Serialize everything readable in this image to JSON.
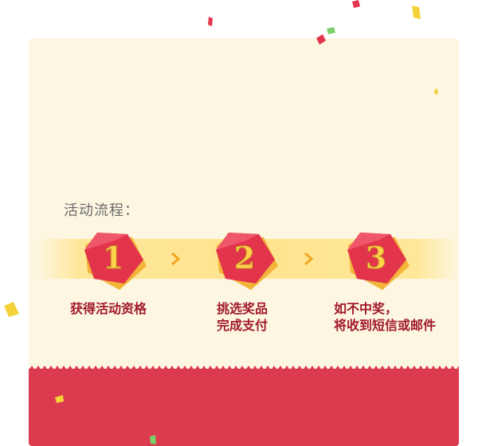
{
  "flow": {
    "label": "活动流程：",
    "steps": [
      {
        "number": "1",
        "caption_lines": [
          "获得活动资格"
        ]
      },
      {
        "number": "2",
        "caption_lines": [
          "挑选奖品",
          "完成支付"
        ]
      },
      {
        "number": "3",
        "caption_lines": [
          "如不中奖，",
          "将收到短信或邮件"
        ]
      }
    ]
  },
  "colors": {
    "card_background": "#fdf6e1",
    "band": "#ffe48e",
    "badge_red": "#e2344a",
    "badge_number": "#ffd24a",
    "caption_text": "#a11a2a",
    "footer": "#db3a4f",
    "arrow": "#f5a623"
  },
  "icons": [
    "chevron-right-icon",
    "confetti-piece"
  ]
}
